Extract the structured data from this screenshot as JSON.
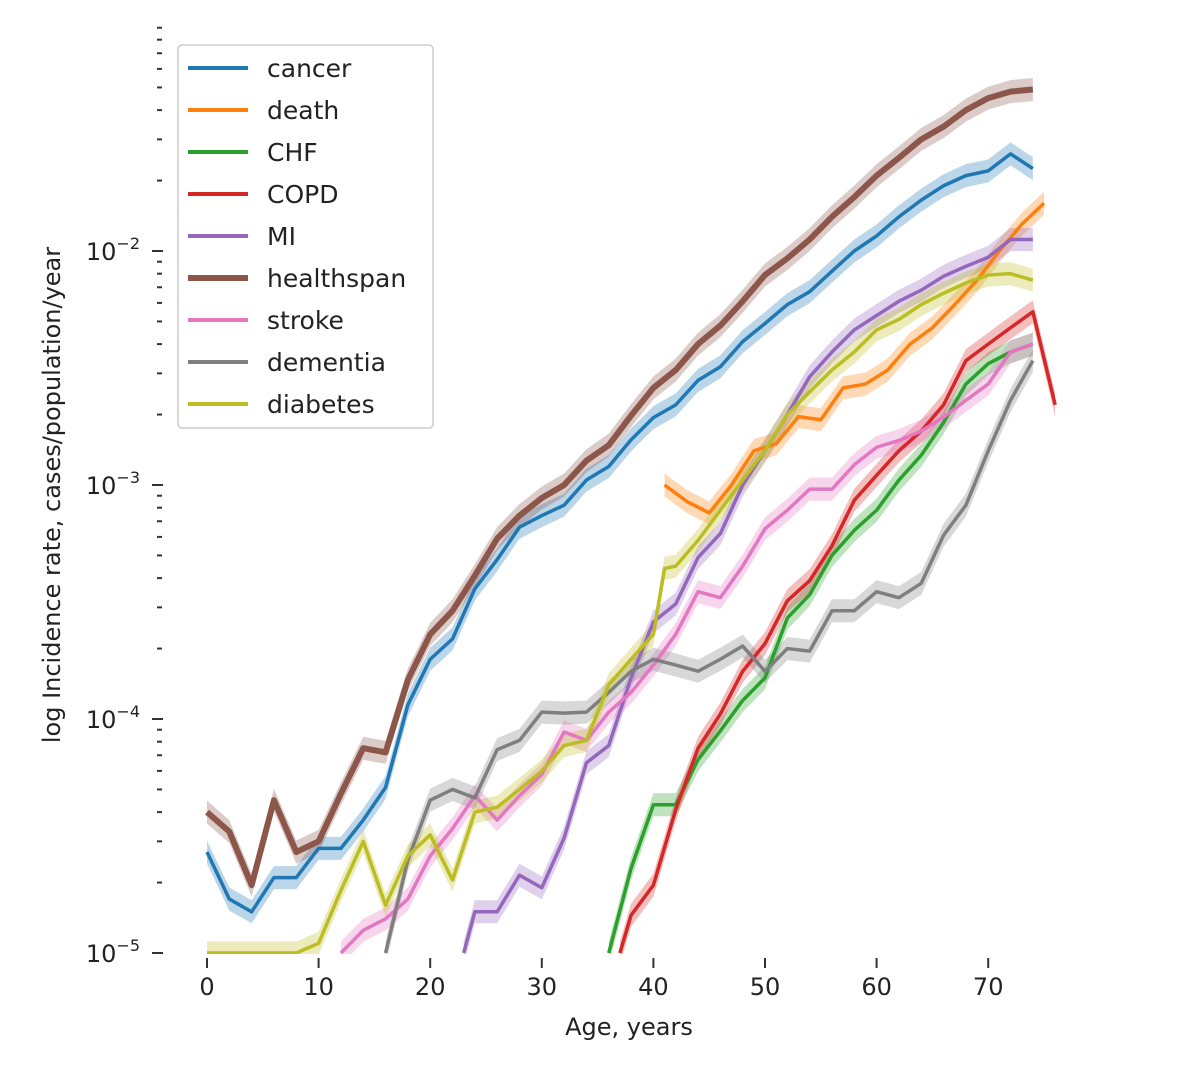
{
  "chart_data": {
    "type": "line",
    "title": "",
    "xlabel": "Age, years",
    "ylabel": "log Incidence rate, cases/population/year",
    "xlim": [
      -1,
      77
    ],
    "ylim": [
      1e-05,
      0.095
    ],
    "yscale": "log",
    "grid": false,
    "legend_position": "top-left",
    "x_ticks": [
      0,
      10,
      20,
      30,
      40,
      50,
      60,
      70
    ],
    "x_tick_labels": [
      "0",
      "10",
      "20",
      "30",
      "40",
      "50",
      "60",
      "70"
    ],
    "y_ticks": [
      {
        "value": 1e-05,
        "base": "10",
        "exp": "−5"
      },
      {
        "value": 0.0001,
        "base": "10",
        "exp": "−4"
      },
      {
        "value": 0.001,
        "base": "10",
        "exp": "−3"
      },
      {
        "value": 0.01,
        "base": "10",
        "exp": "−2"
      }
    ],
    "series": [
      {
        "name": "cancer",
        "color": "#1f77b4",
        "x": [
          0,
          2,
          4,
          6,
          8,
          10,
          12,
          14,
          16,
          18,
          20,
          22,
          24,
          26,
          28,
          30,
          32,
          34,
          36,
          38,
          40,
          42,
          44,
          46,
          48,
          50,
          52,
          54,
          56,
          58,
          60,
          62,
          64,
          66,
          68,
          70,
          72,
          74
        ],
        "y": [
          2.7e-05,
          1.7e-05,
          1.5e-05,
          2.1e-05,
          2.1e-05,
          2.8e-05,
          2.8e-05,
          3.7e-05,
          5.1e-05,
          0.000115,
          0.00018,
          0.00022,
          0.00036,
          0.00048,
          0.00066,
          0.00074,
          0.00082,
          0.00105,
          0.0012,
          0.00156,
          0.00194,
          0.0022,
          0.0028,
          0.0032,
          0.0041,
          0.0049,
          0.0059,
          0.0067,
          0.0082,
          0.01,
          0.0116,
          0.014,
          0.0165,
          0.019,
          0.021,
          0.022,
          0.026,
          0.0225
        ]
      },
      {
        "name": "death",
        "color": "#ff7f0e",
        "x": [
          41,
          43,
          45,
          47,
          49,
          51,
          53,
          55,
          57,
          59,
          61,
          63,
          65,
          67,
          69,
          71,
          73,
          75
        ],
        "y": [
          0.001,
          0.00085,
          0.00076,
          0.001,
          0.0014,
          0.0015,
          0.00196,
          0.0019,
          0.0026,
          0.0027,
          0.0031,
          0.004,
          0.0047,
          0.0059,
          0.0075,
          0.01,
          0.013,
          0.016
        ]
      },
      {
        "name": "CHF",
        "color": "#2ca02c",
        "x": [
          36,
          38,
          40,
          42,
          44,
          46,
          48,
          50,
          52,
          54,
          56,
          58,
          60,
          62,
          64,
          66,
          68,
          70,
          72,
          74
        ],
        "y": [
          1e-05,
          2.3e-05,
          4.3e-05,
          4.3e-05,
          6.7e-05,
          8.9e-05,
          0.00012,
          0.00015,
          0.00027,
          0.00034,
          0.0005,
          0.00064,
          0.00078,
          0.00105,
          0.00134,
          0.00185,
          0.0027,
          0.0033,
          0.0037,
          0.004
        ]
      },
      {
        "name": "COPD",
        "color": "#d62728",
        "x": [
          37,
          38,
          40,
          42,
          44,
          46,
          48,
          50,
          52,
          54,
          56,
          58,
          60,
          62,
          64,
          66,
          68,
          70,
          72,
          74,
          76
        ],
        "y": [
          1e-05,
          1.45e-05,
          1.95e-05,
          4.1e-05,
          7.5e-05,
          0.000105,
          0.00016,
          0.00021,
          0.00032,
          0.00039,
          0.00055,
          0.00086,
          0.0011,
          0.0014,
          0.0017,
          0.0022,
          0.0034,
          0.004,
          0.0047,
          0.0055,
          0.0022
        ]
      },
      {
        "name": "MI",
        "color": "#9467bd",
        "x": [
          23,
          24,
          26,
          28,
          30,
          32,
          34,
          36,
          38,
          40,
          42,
          44,
          46,
          48,
          50,
          52,
          54,
          56,
          58,
          60,
          62,
          64,
          66,
          68,
          70,
          72,
          74
        ],
        "y": [
          1e-05,
          1.5e-05,
          1.5e-05,
          2.15e-05,
          1.9e-05,
          3.1e-05,
          6.5e-05,
          7.7e-05,
          0.00015,
          0.00026,
          0.00031,
          0.00049,
          0.00062,
          0.001,
          0.0014,
          0.002,
          0.0029,
          0.0037,
          0.0046,
          0.0053,
          0.0061,
          0.0068,
          0.0078,
          0.0086,
          0.0094,
          0.0112,
          0.0112
        ]
      },
      {
        "name": "healthspan",
        "color": "#8c564b",
        "x": [
          0,
          2,
          4,
          6,
          8,
          10,
          12,
          14,
          16,
          18,
          20,
          22,
          24,
          26,
          28,
          30,
          32,
          34,
          36,
          38,
          40,
          42,
          44,
          46,
          48,
          50,
          52,
          54,
          56,
          58,
          60,
          62,
          64,
          66,
          68,
          70,
          72,
          74
        ],
        "y": [
          4e-05,
          3.3e-05,
          1.95e-05,
          4.5e-05,
          2.7e-05,
          3e-05,
          4.8e-05,
          7.5e-05,
          7.2e-05,
          0.000147,
          0.00023,
          0.00029,
          0.00041,
          0.00059,
          0.00074,
          0.00088,
          0.001,
          0.00127,
          0.00148,
          0.00198,
          0.0026,
          0.0031,
          0.004,
          0.0048,
          0.0061,
          0.0079,
          0.0093,
          0.0112,
          0.014,
          0.017,
          0.021,
          0.025,
          0.03,
          0.034,
          0.04,
          0.045,
          0.048,
          0.049
        ]
      },
      {
        "name": "stroke",
        "color": "#e377c2",
        "x": [
          12,
          14,
          16,
          18,
          20,
          22,
          24,
          26,
          28,
          30,
          32,
          34,
          36,
          38,
          40,
          42,
          44,
          46,
          48,
          50,
          52,
          54,
          56,
          58,
          60,
          62,
          64,
          66,
          68,
          70,
          72,
          74
        ],
        "y": [
          1e-05,
          1.25e-05,
          1.4e-05,
          1.7e-05,
          2.6e-05,
          3.4e-05,
          4.7e-05,
          3.7e-05,
          4.7e-05,
          5.8e-05,
          8.8e-05,
          8.1e-05,
          0.000107,
          0.00013,
          0.00017,
          0.00023,
          0.00035,
          0.00033,
          0.00045,
          0.00065,
          0.00078,
          0.00096,
          0.00096,
          0.00122,
          0.00145,
          0.00155,
          0.0017,
          0.00195,
          0.0023,
          0.0027,
          0.0037,
          0.004
        ]
      },
      {
        "name": "dementia",
        "color": "#7f7f7f",
        "x": [
          16,
          18,
          20,
          22,
          24,
          26,
          28,
          30,
          32,
          34,
          36,
          38,
          40,
          42,
          44,
          46,
          48,
          50,
          52,
          54,
          56,
          58,
          60,
          62,
          64,
          66,
          68,
          70,
          72,
          74
        ],
        "y": [
          1e-05,
          2.5e-05,
          4.5e-05,
          5e-05,
          4.6e-05,
          7.4e-05,
          8.1e-05,
          0.000107,
          0.000106,
          0.000107,
          0.00013,
          0.00016,
          0.00018,
          0.00017,
          0.00016,
          0.00018,
          0.000205,
          0.00016,
          0.0002,
          0.000195,
          0.00029,
          0.00029,
          0.00035,
          0.00033,
          0.00038,
          0.00061,
          0.00082,
          0.0014,
          0.0023,
          0.0034
        ]
      },
      {
        "name": "diabetes",
        "color": "#bcbd22",
        "x": [
          0,
          2,
          4,
          6,
          8,
          10,
          12,
          14,
          16,
          18,
          20,
          22,
          24,
          26,
          28,
          30,
          32,
          34,
          36,
          38,
          40,
          41,
          42,
          44,
          46,
          48,
          50,
          52,
          54,
          56,
          58,
          60,
          62,
          64,
          66,
          68,
          70,
          72,
          74
        ],
        "y": [
          1e-05,
          1e-05,
          1e-05,
          1e-05,
          1e-05,
          1.1e-05,
          1.85e-05,
          3e-05,
          1.6e-05,
          2.6e-05,
          3.2e-05,
          2.05e-05,
          4e-05,
          4.2e-05,
          5e-05,
          6e-05,
          7.7e-05,
          8.1e-05,
          0.00014,
          0.00018,
          0.00023,
          0.00044,
          0.00045,
          0.00058,
          0.00078,
          0.00105,
          0.0014,
          0.002,
          0.0025,
          0.0031,
          0.0037,
          0.0046,
          0.0051,
          0.0059,
          0.0066,
          0.0073,
          0.0079,
          0.008,
          0.0075
        ]
      }
    ]
  }
}
